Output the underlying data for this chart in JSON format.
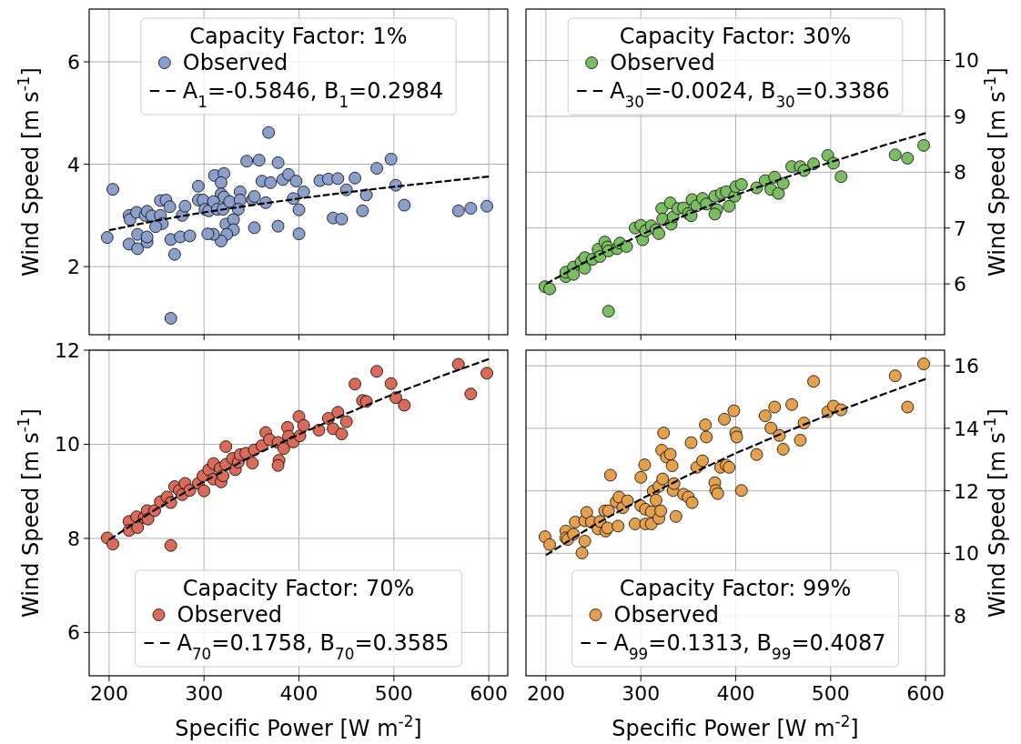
{
  "chart_data": [
    {
      "type": "scatter",
      "legend_title": "Capacity Factor: 1%",
      "ylabel": "Wind Speed [m s$^{-1}$]",
      "xlim": [
        179,
        620
      ],
      "xticks": [
        200,
        300,
        400,
        500,
        600
      ],
      "ylim": [
        0.67,
        7.03
      ],
      "yticks": [
        2,
        4,
        6
      ],
      "grid": true,
      "legend": "top",
      "tick_labels": "y",
      "series": [
        {
          "name": "Observed",
          "marker": "circle",
          "color": "#8c9fcb",
          "x": [
            198,
            204,
            221,
            222,
            229,
            238,
            240,
            245,
            254,
            260,
            264,
            254,
            256,
            249,
            230,
            221,
            230,
            240,
            240,
            265,
            269,
            275,
            285,
            265,
            277,
            280,
            294,
            294,
            299,
            301,
            305,
            311,
            321,
            318,
            318,
            321,
            310,
            314,
            320,
            327,
            338,
            338,
            336,
            323,
            331,
            331,
            324,
            318,
            310,
            304,
            345,
            358,
            368,
            378,
            361,
            370,
            351,
            353,
            353,
            365,
            378,
            383,
            389,
            397,
            394,
            405,
            400,
            400,
            422,
            431,
            441,
            436,
            445,
            450,
            459,
            467,
            471,
            482,
            497,
            502,
            511,
            568,
            581,
            598
          ],
          "values": [
            2.57,
            3.51,
            3.0,
            2.92,
            3.06,
            3.0,
            3.08,
            2.99,
            3.29,
            3.3,
            3.17,
            3.0,
            2.84,
            2.78,
            2.63,
            2.44,
            2.35,
            2.48,
            2.58,
            2.53,
            2.24,
            2.58,
            2.6,
            0.99,
            3.0,
            3.18,
            3.57,
            3.3,
            3.3,
            3.12,
            3.09,
            3.78,
            3.82,
            3.64,
            3.42,
            3.36,
            3.27,
            3.12,
            3.12,
            3.27,
            3.46,
            3.3,
            3.12,
            2.83,
            2.92,
            2.72,
            2.63,
            2.5,
            2.63,
            2.64,
            4.06,
            4.08,
            4.62,
            4.03,
            3.67,
            3.64,
            3.31,
            3.37,
            2.76,
            3.25,
            2.79,
            3.7,
            3.8,
            3.67,
            3.33,
            3.46,
            3.11,
            2.64,
            3.68,
            3.71,
            3.72,
            2.95,
            2.93,
            3.5,
            3.73,
            3.09,
            3.4,
            3.92,
            4.1,
            3.59,
            3.2,
            3.09,
            3.14,
            3.18
          ]
        },
        {
          "name": "A$_{1}$=-0.5846, B$_{1}$=0.2984",
          "type": "line",
          "marker": "none",
          "color": "#000000",
          "line_style": "dashed",
          "x": [
            200,
            250,
            300,
            350,
            400,
            450,
            500,
            550,
            600
          ],
          "values": [
            2.71,
            2.9,
            3.06,
            3.2,
            3.33,
            3.45,
            3.56,
            3.66,
            3.76
          ]
        }
      ]
    },
    {
      "type": "scatter",
      "legend_title": "Capacity Factor: 30%",
      "y2label": "Wind Speed [m s$^{-1}$]",
      "xlim": [
        179,
        620
      ],
      "xticks": [
        200,
        300,
        400,
        500,
        600
      ],
      "y2lim": [
        5.09,
        10.92
      ],
      "y2ticks": [
        6,
        7,
        8,
        9,
        10
      ],
      "grid": true,
      "legend": "top",
      "tick_labels": "y",
      "series": [
        {
          "name": "Observed",
          "marker": "circle",
          "axis": "y2",
          "color": "#7cbd63",
          "x": [
            199,
            204,
            221,
            221,
            229,
            229,
            237,
            241,
            241,
            249,
            255,
            257,
            262,
            265,
            266,
            275,
            278,
            285,
            266,
            294,
            300,
            302,
            305,
            311,
            316,
            319,
            322,
            323,
            331,
            332,
            334,
            339,
            345,
            350,
            353,
            354,
            359,
            365,
            369,
            378,
            380,
            378,
            385,
            390,
            393,
            399,
            400,
            406,
            422,
            431,
            437,
            441,
            445,
            450,
            459,
            468,
            472,
            482,
            497,
            503,
            511,
            568,
            581,
            598
          ],
          "values": [
            5.95,
            5.91,
            6.13,
            6.21,
            6.3,
            6.17,
            6.39,
            6.47,
            6.28,
            6.44,
            6.62,
            6.49,
            6.75,
            6.66,
            6.59,
            6.63,
            6.73,
            6.67,
            5.51,
            7.0,
            7.05,
            6.79,
            6.95,
            7.04,
            6.97,
            6.9,
            7.35,
            7.16,
            7.45,
            7.07,
            7.2,
            7.35,
            7.36,
            7.26,
            7.22,
            7.51,
            7.4,
            7.53,
            7.43,
            7.57,
            7.33,
            7.25,
            7.62,
            7.65,
            7.39,
            7.57,
            7.74,
            7.78,
            7.72,
            7.85,
            7.69,
            7.91,
            7.62,
            7.8,
            8.1,
            8.1,
            8.03,
            8.15,
            8.3,
            8.16,
            7.92,
            8.31,
            8.25,
            8.48
          ]
        },
        {
          "name": "A$_{30}$=-0.0024, B$_{30}$=0.3386",
          "type": "line",
          "marker": "none",
          "axis": "y2",
          "color": "#000000",
          "line_style": "dashed",
          "x": [
            200,
            250,
            300,
            350,
            400,
            450,
            500,
            550,
            600
          ],
          "values": [
            6.0,
            6.47,
            6.88,
            7.25,
            7.59,
            7.89,
            8.18,
            8.45,
            8.7
          ]
        }
      ]
    },
    {
      "type": "scatter",
      "legend_title": "Capacity Factor: 70%",
      "xlabel": "Specific Power [W m$^{-2}$]",
      "ylabel": "Wind Speed [m s$^{-1}$]",
      "xlim": [
        179,
        620
      ],
      "xticks": [
        200,
        300,
        400,
        500,
        600
      ],
      "ylim": [
        5.08,
        12
      ],
      "yticks": [
        6,
        8,
        10,
        12
      ],
      "grid": true,
      "legend": "bottom",
      "series": [
        {
          "name": "Observed",
          "marker": "circle",
          "color": "#d96b5a",
          "x": [
            198,
            204,
            221,
            221,
            229,
            230,
            237,
            240,
            241,
            248,
            254,
            261,
            265,
            265,
            269,
            274,
            277,
            280,
            285,
            294,
            300,
            299,
            305,
            310,
            310,
            317,
            318,
            320,
            323,
            323,
            330,
            333,
            336,
            338,
            344,
            351,
            353,
            361,
            365,
            369,
            378,
            379,
            378,
            384,
            388,
            389,
            394,
            400,
            401,
            405,
            421,
            431,
            436,
            441,
            445,
            450,
            459,
            467,
            471,
            482,
            497,
            502,
            511,
            568,
            581,
            598
          ],
          "values": [
            8.01,
            7.88,
            8.36,
            8.17,
            8.46,
            8.23,
            8.44,
            8.59,
            8.41,
            8.59,
            8.78,
            8.88,
            8.76,
            7.85,
            9.1,
            9.02,
            8.93,
            9.17,
            9.02,
            9.17,
            9.01,
            9.33,
            9.46,
            9.59,
            9.26,
            9.49,
            9.2,
            9.33,
            9.95,
            9.57,
            9.7,
            9.46,
            9.62,
            9.78,
            9.81,
            9.6,
            9.88,
            9.97,
            10.25,
            10.1,
            10.04,
            9.66,
            9.55,
            9.91,
            10.36,
            10.17,
            10.05,
            10.59,
            10.18,
            10.4,
            10.3,
            10.55,
            10.33,
            10.68,
            10.22,
            10.48,
            11.28,
            10.93,
            10.91,
            11.55,
            11.29,
            10.99,
            10.83,
            11.7,
            11.07,
            11.51
          ]
        },
        {
          "name": "A$_{70}$=0.1758, B$_{70}$=0.3585",
          "type": "line",
          "marker": "none",
          "color": "#000000",
          "line_style": "dashed",
          "x": [
            200,
            250,
            300,
            350,
            400,
            450,
            500,
            550,
            600
          ],
          "values": [
            7.97,
            8.63,
            9.21,
            9.74,
            10.21,
            10.65,
            11.07,
            11.45,
            11.81
          ]
        }
      ]
    },
    {
      "type": "scatter",
      "legend_title": "Capacity Factor: 99%",
      "xlabel": "Specific Power [W m$^{-2}$]",
      "y2label": "Wind Speed [m s$^{-1}$]",
      "xlim": [
        179,
        620
      ],
      "xticks": [
        200,
        300,
        400,
        500,
        600
      ],
      "y2lim": [
        6.08,
        16.5
      ],
      "y2ticks": [
        8,
        10,
        12,
        14,
        16
      ],
      "grid": true,
      "legend": "bottom",
      "series": [
        {
          "name": "Observed",
          "marker": "circle",
          "axis": "y2",
          "color": "#e5a04e",
          "x": [
            199,
            204,
            221,
            221,
            223,
            229,
            231,
            238,
            241,
            241,
            243,
            248,
            255,
            257,
            262,
            263,
            266,
            265,
            268,
            274,
            277,
            276,
            281,
            286,
            294,
            300,
            304,
            300,
            305,
            305,
            311,
            311,
            313,
            316,
            319,
            319,
            321,
            322,
            324,
            323,
            327,
            331,
            333,
            334,
            335,
            337,
            345,
            350,
            354,
            353,
            359,
            365,
            368,
            369,
            378,
            379,
            381,
            384,
            388,
            390,
            393,
            398,
            400,
            401,
            406,
            422,
            431,
            437,
            441,
            446,
            450,
            459,
            468,
            472,
            482,
            497,
            503,
            511,
            568,
            581,
            598
          ],
          "values": [
            10.53,
            10.28,
            10.71,
            10.49,
            10.44,
            10.61,
            11.0,
            10.01,
            10.39,
            11.04,
            11.31,
            11.0,
            10.78,
            11.02,
            11.36,
            10.71,
            11.36,
            10.81,
            12.5,
            11.65,
            11.8,
            10.87,
            11.46,
            11.68,
            10.94,
            12.43,
            12.83,
            11.52,
            11.41,
            10.94,
            11.33,
            10.94,
            11.99,
            11.7,
            11.12,
            12.14,
            11.36,
            13.3,
            13.85,
            12.38,
            13.08,
            13.17,
            12.8,
            12.01,
            12.23,
            11.18,
            11.89,
            11.8,
            11.62,
            13.54,
            12.75,
            12.96,
            14.11,
            13.72,
            12.26,
            12.01,
            11.91,
            12.75,
            14.29,
            12.82,
            12.75,
            14.56,
            13.85,
            13.72,
            12.01,
            13.16,
            14.4,
            14.01,
            14.68,
            13.77,
            13.33,
            14.76,
            13.62,
            14.17,
            15.5,
            14.53,
            14.71,
            14.59,
            15.68,
            14.68,
            16.06
          ]
        },
        {
          "name": "A$_{99}$=0.1313, B$_{99}$=0.4087",
          "type": "line",
          "marker": "none",
          "axis": "y2",
          "color": "#000000",
          "line_style": "dashed",
          "x": [
            200,
            250,
            300,
            350,
            400,
            450,
            500,
            550,
            600
          ],
          "values": [
            9.94,
            10.89,
            11.73,
            12.5,
            13.2,
            13.85,
            14.46,
            15.03,
            15.58
          ]
        }
      ]
    }
  ]
}
